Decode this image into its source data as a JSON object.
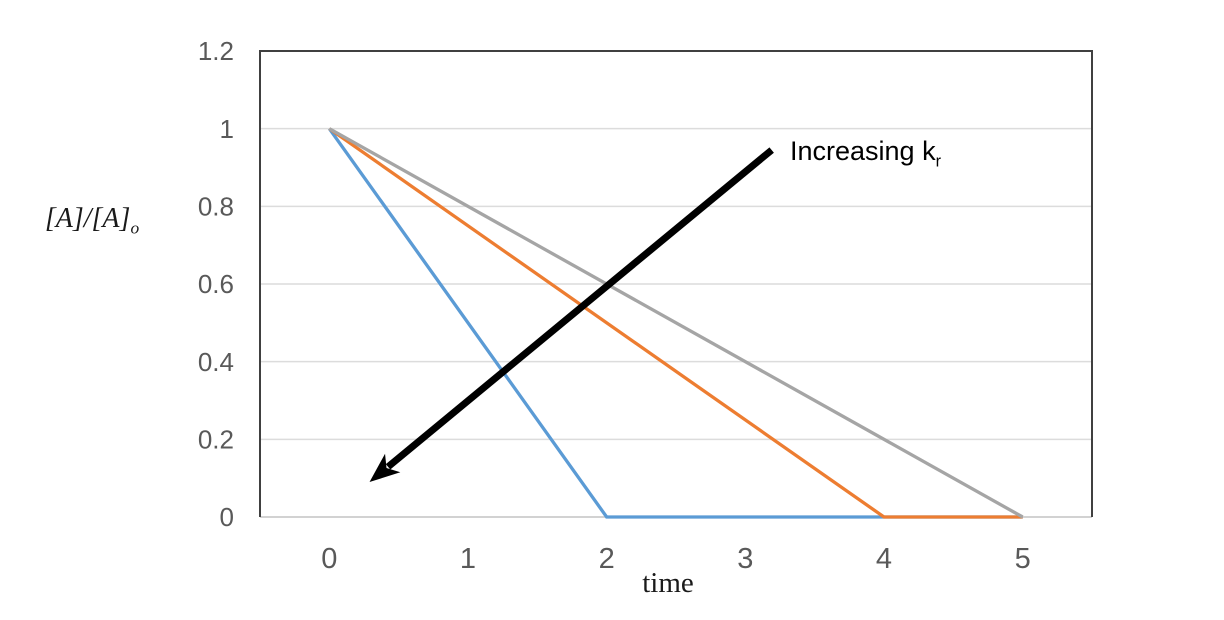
{
  "chart_data": {
    "type": "line",
    "title": "",
    "xlabel": "time",
    "ylabel_main": "[A]/[A]",
    "ylabel_sub": "o",
    "xlim": [
      -0.5,
      5.5
    ],
    "ylim": [
      0,
      1.2
    ],
    "x_ticks": [
      0,
      1,
      2,
      3,
      4,
      5
    ],
    "y_ticks": [
      0,
      0.2,
      0.4,
      0.6,
      0.8,
      1,
      1.2
    ],
    "grid": "horizontal",
    "legend": "none",
    "series": [
      {
        "name": "series-blue",
        "color": "#5B9BD5",
        "points": [
          [
            0,
            1
          ],
          [
            2,
            0
          ],
          [
            5,
            0
          ]
        ]
      },
      {
        "name": "series-orange",
        "color": "#ED7D31",
        "points": [
          [
            0,
            1
          ],
          [
            4,
            0
          ],
          [
            5,
            0
          ]
        ]
      },
      {
        "name": "series-gray",
        "color": "#A5A5A5",
        "points": [
          [
            0,
            1
          ],
          [
            5,
            0
          ]
        ]
      }
    ],
    "annotation": {
      "text": "Increasing k",
      "subscript": "r",
      "color": "#000000",
      "arrow_from": [
        3.19,
        0.945
      ],
      "arrow_to": [
        0.29,
        0.09
      ]
    },
    "styles": {
      "background": "#FFFFFF",
      "gridline_color": "#DCDCDC",
      "axis_line_color": "#C9C9C9",
      "plot_border_color": "#404040",
      "tick_label_color": "#595959",
      "series_stroke_width": 3.3
    }
  }
}
